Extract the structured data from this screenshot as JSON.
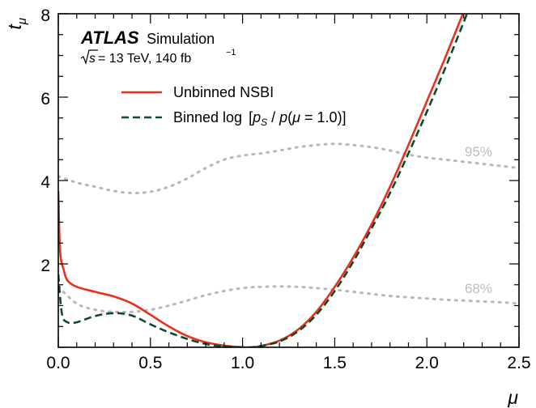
{
  "chart_data": {
    "type": "line",
    "xlabel": "μ",
    "ylabel": "t_μ",
    "xlim": [
      0.0,
      2.5
    ],
    "ylim": [
      0.0,
      8.0
    ],
    "xticks": [
      "0.0",
      "0.5",
      "1.0",
      "1.5",
      "2.0",
      "2.5"
    ],
    "yticks": [
      "2",
      "4",
      "6",
      "8"
    ],
    "experiment": "ATLAS",
    "experiment_suffix": "Simulation",
    "energy_text": "= 13 TeV, 140 fb",
    "legend_position": "top-left",
    "colors": {
      "unbinned": "#e8301c",
      "binned": "#0d4a2e",
      "bands": "#b8b8b8"
    },
    "series": [
      {
        "name": "Unbinned NSBI",
        "style": "solid",
        "x": [
          0.0,
          0.01,
          0.03,
          0.05,
          0.1,
          0.2,
          0.3,
          0.4,
          0.5,
          0.6,
          0.7,
          0.8,
          0.9,
          1.0,
          1.05,
          1.1,
          1.2,
          1.3,
          1.4,
          1.5,
          1.6,
          1.7,
          1.8,
          1.9,
          2.0,
          2.1,
          2.2,
          2.3
        ],
        "values": [
          3.75,
          2.3,
          1.85,
          1.6,
          1.45,
          1.33,
          1.22,
          1.05,
          0.78,
          0.5,
          0.27,
          0.12,
          0.04,
          0.0,
          0.0,
          0.03,
          0.16,
          0.42,
          0.85,
          1.45,
          2.15,
          2.95,
          3.85,
          4.85,
          5.9,
          6.95,
          8.05,
          9.2
        ]
      },
      {
        "name": "Binned log [p_S / p(μ = 1.0)]",
        "style": "dashed",
        "x": [
          0.0,
          0.02,
          0.05,
          0.1,
          0.2,
          0.3,
          0.4,
          0.5,
          0.6,
          0.7,
          0.8,
          0.9,
          1.0,
          1.05,
          1.1,
          1.2,
          1.3,
          1.4,
          1.5,
          1.6,
          1.7,
          1.8,
          1.9,
          2.0,
          2.1,
          2.2,
          2.3
        ],
        "values": [
          1.75,
          0.8,
          0.6,
          0.6,
          0.75,
          0.82,
          0.76,
          0.55,
          0.36,
          0.2,
          0.08,
          0.02,
          0.0,
          0.0,
          0.03,
          0.14,
          0.38,
          0.78,
          1.35,
          2.05,
          2.85,
          3.7,
          4.65,
          5.65,
          6.7,
          7.8,
          8.95
        ]
      }
    ],
    "bands": [
      {
        "label": "95%",
        "x": [
          0.0,
          0.1,
          0.2,
          0.3,
          0.4,
          0.5,
          0.6,
          0.7,
          0.8,
          0.9,
          1.0,
          1.1,
          1.2,
          1.3,
          1.4,
          1.5,
          1.6,
          1.7,
          1.8,
          1.9,
          2.0,
          2.1,
          2.2,
          2.3,
          2.4,
          2.5
        ],
        "values": [
          4.1,
          3.95,
          3.85,
          3.75,
          3.7,
          3.73,
          3.85,
          4.05,
          4.3,
          4.5,
          4.6,
          4.65,
          4.72,
          4.8,
          4.85,
          4.88,
          4.85,
          4.8,
          4.72,
          4.62,
          4.55,
          4.5,
          4.45,
          4.4,
          4.35,
          4.3
        ]
      },
      {
        "label": "68%",
        "x": [
          0.0,
          0.1,
          0.2,
          0.3,
          0.4,
          0.5,
          0.6,
          0.7,
          0.8,
          0.9,
          1.0,
          1.1,
          1.2,
          1.3,
          1.4,
          1.5,
          1.6,
          1.7,
          1.8,
          1.9,
          2.0,
          2.1,
          2.2,
          2.3,
          2.4,
          2.5
        ],
        "values": [
          1.45,
          1.05,
          0.9,
          0.85,
          0.85,
          0.9,
          1.0,
          1.12,
          1.25,
          1.35,
          1.42,
          1.45,
          1.46,
          1.45,
          1.42,
          1.38,
          1.33,
          1.28,
          1.23,
          1.2,
          1.17,
          1.14,
          1.12,
          1.1,
          1.08,
          1.05
        ]
      }
    ]
  }
}
